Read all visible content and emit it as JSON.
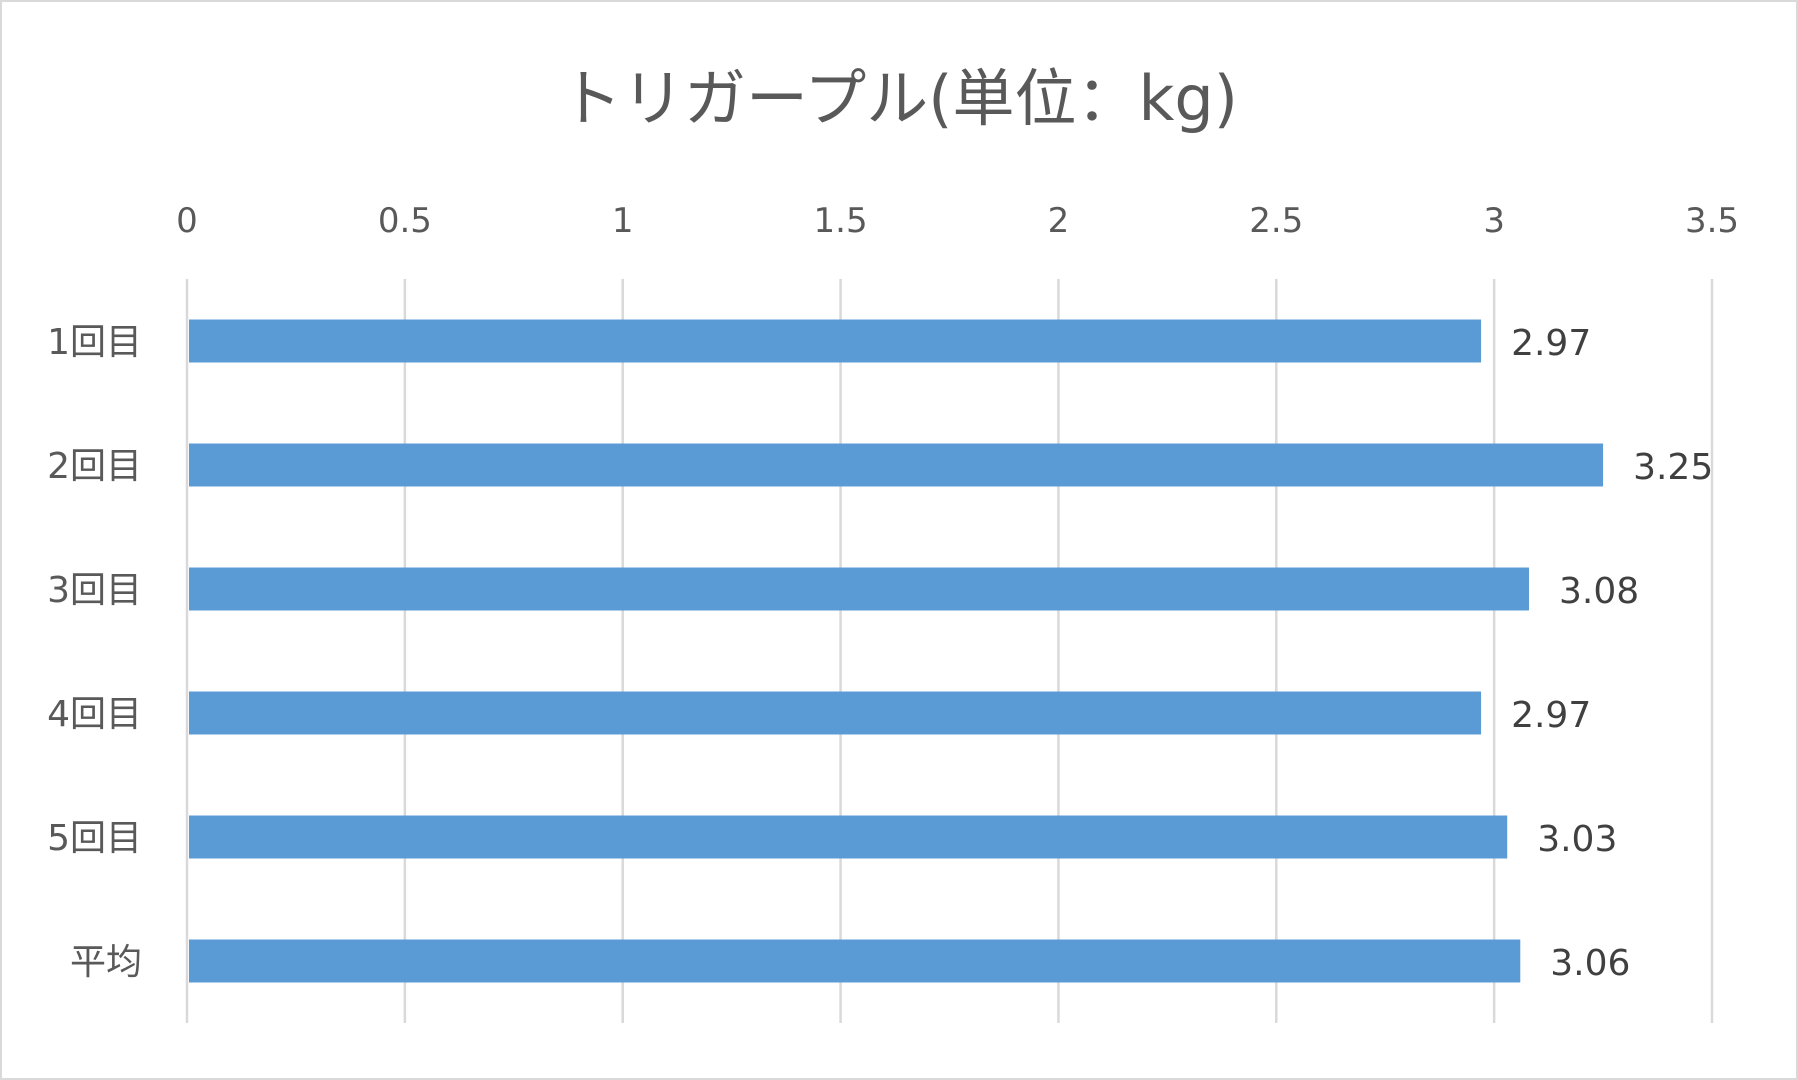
{
  "chart_data": {
    "type": "bar",
    "orientation": "horizontal",
    "title": "トリガープル(単位：kg)",
    "xlabel": "",
    "ylabel": "",
    "categories": [
      "1回目",
      "2回目",
      "3回目",
      "4回目",
      "5回目",
      "平均"
    ],
    "values": [
      2.97,
      3.25,
      3.08,
      2.97,
      3.03,
      3.06
    ],
    "data_labels": [
      "2.97",
      "3.25",
      "3.08",
      "2.97",
      "3.03",
      "3.06"
    ],
    "xlim": [
      0,
      3.5
    ],
    "xticks": [
      0,
      0.5,
      1,
      1.5,
      2,
      2.5,
      3,
      3.5
    ],
    "xtick_labels": [
      "0",
      "0.5",
      "1",
      "1.5",
      "2",
      "2.5",
      "3",
      "3.5"
    ],
    "axis_position": "top",
    "grid": true,
    "legend": "none",
    "colors": {
      "bar": "#5b9bd5",
      "grid": "#d9d9d9",
      "text": "#595959"
    }
  }
}
